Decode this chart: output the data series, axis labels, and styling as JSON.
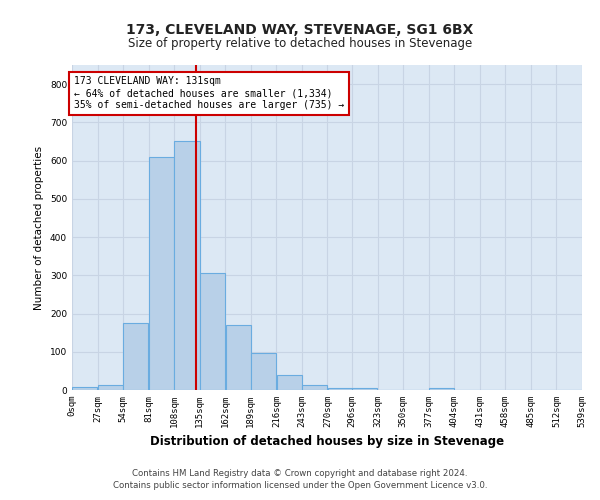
{
  "title_line1": "173, CLEVELAND WAY, STEVENAGE, SG1 6BX",
  "title_line2": "Size of property relative to detached houses in Stevenage",
  "xlabel": "Distribution of detached houses by size in Stevenage",
  "ylabel": "Number of detached properties",
  "annotation_line1": "173 CLEVELAND WAY: 131sqm",
  "annotation_line2": "← 64% of detached houses are smaller (1,334)",
  "annotation_line3": "35% of semi-detached houses are larger (735) →",
  "vline_x": 131,
  "bar_edges": [
    0,
    27,
    54,
    81,
    108,
    135,
    162,
    189,
    216,
    243,
    270,
    296,
    323,
    350,
    377,
    404,
    431,
    458,
    485,
    512,
    539
  ],
  "bar_heights": [
    7,
    13,
    175,
    610,
    650,
    305,
    170,
    97,
    38,
    14,
    5,
    5,
    0,
    0,
    5,
    0,
    0,
    0,
    0,
    0
  ],
  "bar_color": "#b8d0e8",
  "bar_edge_color": "#6aace0",
  "vline_color": "#cc0000",
  "grid_color": "#c8d4e4",
  "bg_color": "#ffffff",
  "plot_bg_color": "#dce8f4",
  "annotation_box_color": "#ffffff",
  "annotation_box_edge": "#cc0000",
  "ylim": [
    0,
    850
  ],
  "yticks": [
    0,
    100,
    200,
    300,
    400,
    500,
    600,
    700,
    800
  ],
  "footer": "Contains HM Land Registry data © Crown copyright and database right 2024.\nContains public sector information licensed under the Open Government Licence v3.0."
}
